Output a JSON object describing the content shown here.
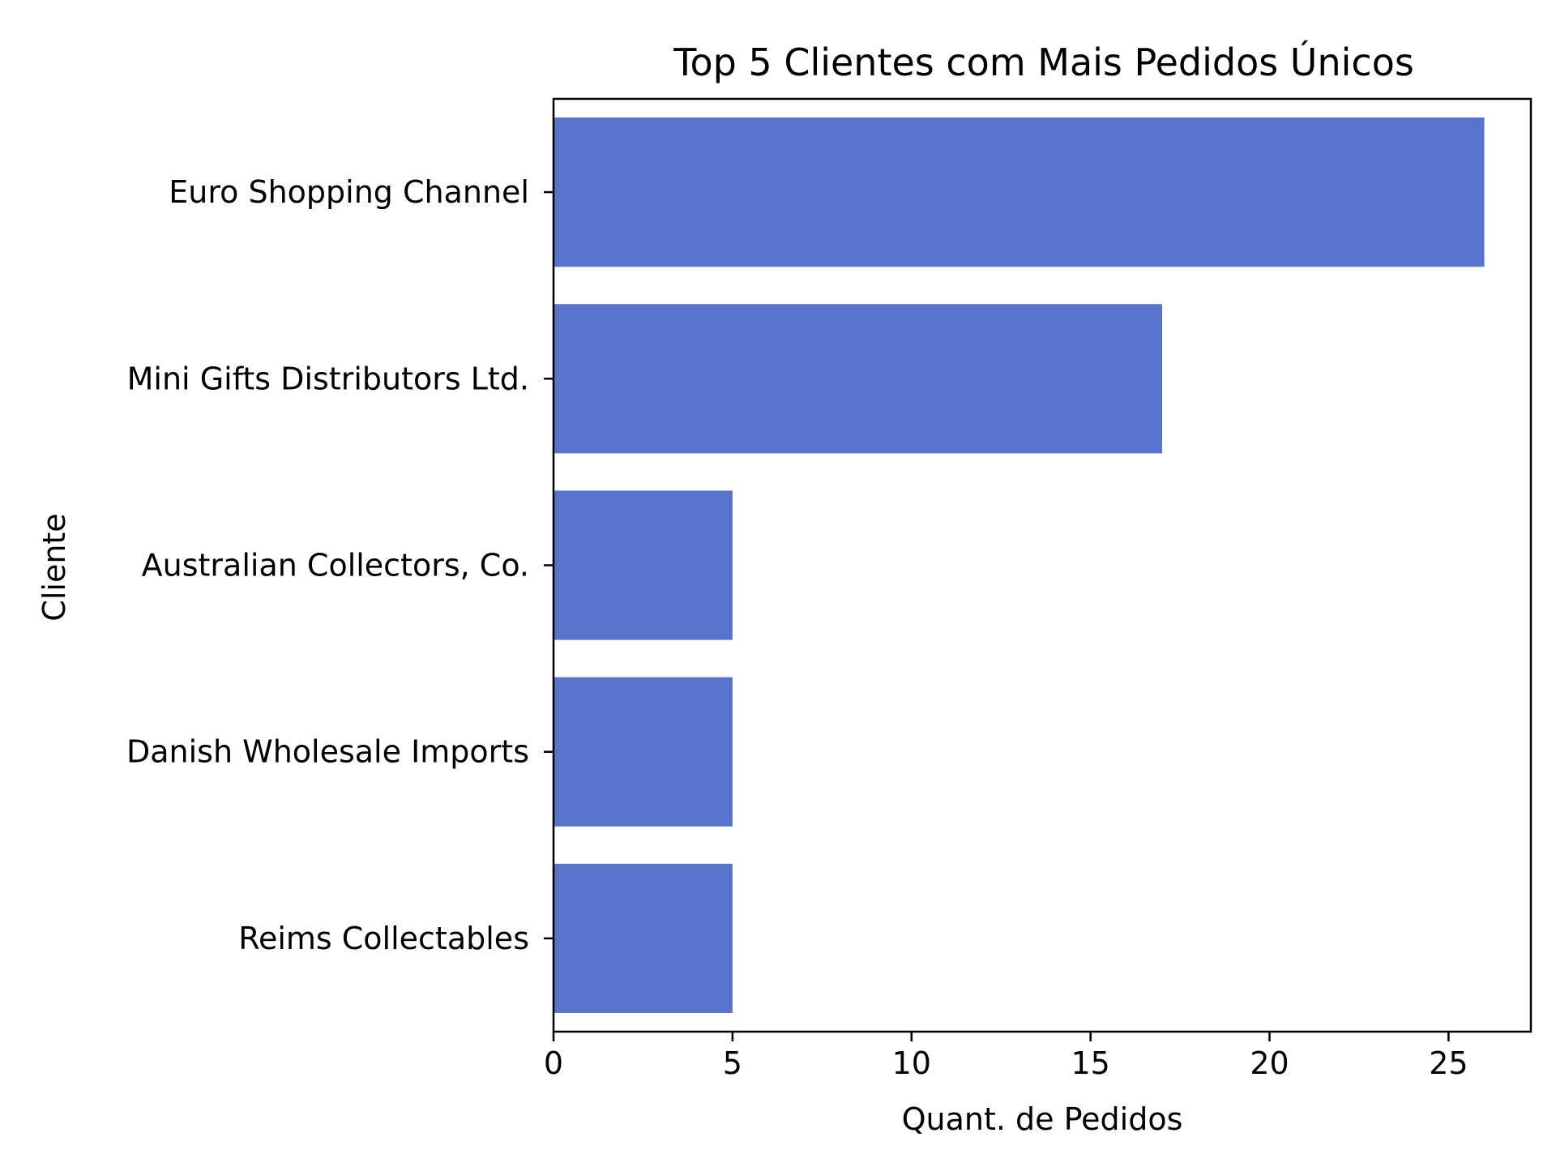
{
  "chart_data": {
    "type": "bar",
    "orientation": "horizontal",
    "title": "Top 5 Clientes com Mais Pedidos Únicos",
    "xlabel": "Quant. de Pedidos",
    "ylabel": "Cliente",
    "categories": [
      "Euro Shopping Channel",
      "Mini Gifts Distributors Ltd.",
      "Australian Collectors, Co.",
      "Danish Wholesale Imports",
      "Reims Collectables"
    ],
    "values": [
      26,
      17,
      5,
      5,
      5
    ],
    "xlim": [
      0,
      27.3
    ],
    "xticks": [
      0,
      5,
      10,
      15,
      20,
      25
    ],
    "xtick_labels": [
      "0",
      "5",
      "10",
      "15",
      "20",
      "25"
    ],
    "grid": false,
    "bar_color": "#5773CC"
  }
}
